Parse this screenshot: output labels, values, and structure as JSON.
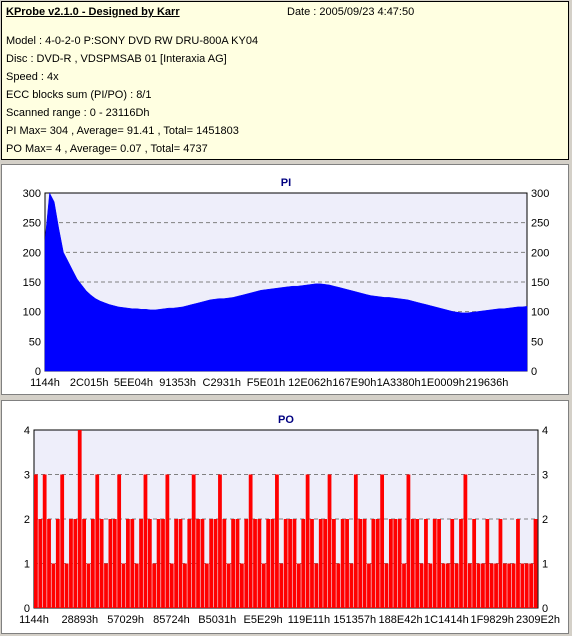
{
  "info": {
    "title": "KProbe v2.1.0 - Designed by Karr",
    "date": "Date : 2005/09/23 4:47:50",
    "lines": [
      "Model : 4-0-2-0 P:SONY    DVD RW DRU-800A  KY04",
      "Disc : DVD-R , VDSPMSAB 01 [Interaxia AG]",
      "Speed : 4x",
      "ECC blocks sum (PI/PO) : 8/1",
      "Scanned range : 0 - 23116Dh",
      "PI Max= 304 , Average= 91.41 , Total= 1451803",
      "PO Max= 4 , Average= 0.07 , Total= 4737"
    ]
  },
  "chart_data": [
    {
      "type": "area",
      "title": "PI",
      "ylim": [
        0,
        300
      ],
      "yticks": [
        0,
        50,
        100,
        150,
        200,
        250,
        300
      ],
      "grid": true,
      "color": "#0000ff",
      "xticks": [
        "1144h",
        "2C015h",
        "5EE04h",
        "91353h",
        "C2931h",
        "F5E01h",
        "12E062h",
        "167E90h",
        "1A3380h",
        "1E0009h",
        "219636h"
      ],
      "series": [
        {
          "values": [
            220,
            300,
            285,
            240,
            200,
            185,
            170,
            155,
            145,
            135,
            128,
            122,
            118,
            115,
            112,
            110,
            108,
            107,
            106,
            105,
            105,
            104,
            104,
            103,
            103,
            104,
            105,
            106,
            106,
            107,
            108,
            110,
            112,
            114,
            116,
            118,
            120,
            121,
            122,
            122,
            123,
            124,
            126,
            128,
            130,
            132,
            134,
            136,
            137,
            138,
            139,
            140,
            141,
            142,
            143,
            143,
            144,
            145,
            146,
            147,
            147,
            146,
            145,
            143,
            141,
            139,
            137,
            135,
            133,
            131,
            129,
            127,
            126,
            125,
            124,
            124,
            123,
            122,
            121,
            120,
            118,
            116,
            114,
            112,
            110,
            108,
            106,
            104,
            102,
            100,
            99,
            98,
            98,
            99,
            100,
            101,
            102,
            103,
            104,
            105,
            105,
            106,
            107,
            108,
            108,
            109
          ]
        }
      ]
    },
    {
      "type": "bar",
      "title": "PO",
      "ylim": [
        0,
        4
      ],
      "yticks": [
        0,
        1,
        2,
        3,
        4
      ],
      "grid": true,
      "color": "#ff0000",
      "xticks": [
        "1144h",
        "28893h",
        "57029h",
        "85724h",
        "B5031h",
        "E5E29h",
        "119E11h",
        "151357h",
        "188E42h",
        "1C1414h",
        "1F9829h",
        "2309E2h"
      ],
      "series": [
        {
          "values": [
            3,
            2,
            3,
            2,
            1,
            2,
            3,
            1,
            2,
            2,
            4,
            2,
            1,
            2,
            3,
            2,
            1,
            2,
            2,
            3,
            1,
            2,
            2,
            1,
            2,
            3,
            2,
            1,
            2,
            2,
            3,
            1,
            2,
            2,
            1,
            2,
            3,
            2,
            2,
            1,
            2,
            2,
            3,
            2,
            1,
            2,
            2,
            1,
            2,
            3,
            2,
            2,
            1,
            2,
            2,
            3,
            1,
            2,
            2,
            2,
            1,
            2,
            3,
            2,
            1,
            2,
            2,
            3,
            2,
            1,
            2,
            2,
            1,
            3,
            2,
            2,
            1,
            2,
            2,
            3,
            1,
            2,
            2,
            2,
            1,
            3,
            2,
            2,
            1,
            2,
            1,
            2,
            2,
            1,
            1,
            2,
            1,
            2,
            3,
            1,
            2,
            1,
            1,
            2,
            1,
            1,
            2,
            1,
            1,
            1,
            2,
            1,
            1,
            1,
            2
          ]
        }
      ]
    }
  ]
}
